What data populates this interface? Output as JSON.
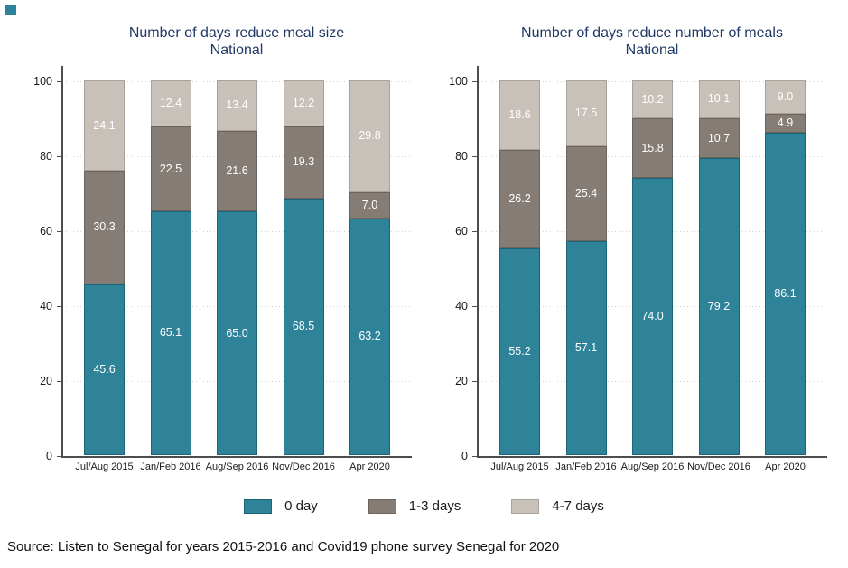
{
  "chart_data": [
    {
      "type": "bar",
      "stacked": true,
      "title": "Number of days reduce meal size",
      "subtitle": "National",
      "categories": [
        "Jul/Aug 2015",
        "Jan/Feb 2016",
        "Aug/Sep 2016",
        "Nov/Dec 2016",
        "Apr 2020"
      ],
      "series": [
        {
          "name": "0 day",
          "color": "#2f8399",
          "border": "#1a6478",
          "values": [
            45.6,
            65.1,
            65.0,
            68.5,
            63.2
          ]
        },
        {
          "name": "1-3 days",
          "color": "#857d75",
          "border": "#6b635c",
          "values": [
            30.3,
            22.5,
            21.6,
            19.3,
            7.0
          ]
        },
        {
          "name": "4-7 days",
          "color": "#c8c1b9",
          "border": "#aaa29a",
          "values": [
            24.1,
            12.4,
            13.4,
            12.2,
            29.8
          ]
        }
      ],
      "ylim": [
        0,
        100
      ],
      "yticks": [
        0,
        20,
        40,
        60,
        80,
        100
      ],
      "grid": "dotted-horizontal",
      "value_labels": "white, centered in each segment, 1 decimal"
    },
    {
      "type": "bar",
      "stacked": true,
      "title": "Number of days reduce number of meals",
      "subtitle": "National",
      "categories": [
        "Jul/Aug 2015",
        "Jan/Feb 2016",
        "Aug/Sep 2016",
        "Nov/Dec 2016",
        "Apr 2020"
      ],
      "series": [
        {
          "name": "0 day",
          "color": "#2f8399",
          "border": "#1a6478",
          "values": [
            55.2,
            57.1,
            74.0,
            79.2,
            86.1
          ]
        },
        {
          "name": "1-3 days",
          "color": "#857d75",
          "border": "#6b635c",
          "values": [
            26.2,
            25.4,
            15.8,
            10.7,
            4.9
          ]
        },
        {
          "name": "4-7 days",
          "color": "#c8c1b9",
          "border": "#aaa29a",
          "values": [
            18.6,
            17.5,
            10.2,
            10.1,
            9.0
          ]
        }
      ],
      "ylim": [
        0,
        100
      ],
      "yticks": [
        0,
        20,
        40,
        60,
        80,
        100
      ],
      "grid": "dotted-horizontal",
      "value_labels": "white, centered in each segment, 1 decimal"
    }
  ],
  "legend": {
    "position": "bottom-center, shared by both charts",
    "items": [
      {
        "label": "0 day",
        "color": "#2f8399",
        "border": "#1a6478"
      },
      {
        "label": "1-3 days",
        "color": "#857d75",
        "border": "#6b635c"
      },
      {
        "label": "4-7 days",
        "color": "#c8c1b9",
        "border": "#aaa29a"
      }
    ]
  },
  "source": "Source: Listen to Senegal for years 2015-2016 and Covid19 phone survey Senegal for 2020",
  "colors": {
    "title": "#1f3864",
    "axis": "#4d4d4d",
    "gridline": "#d1d1d1",
    "value_label": "#ffffff",
    "corner_mark": "#2e8299",
    "background": "#ffffff"
  }
}
